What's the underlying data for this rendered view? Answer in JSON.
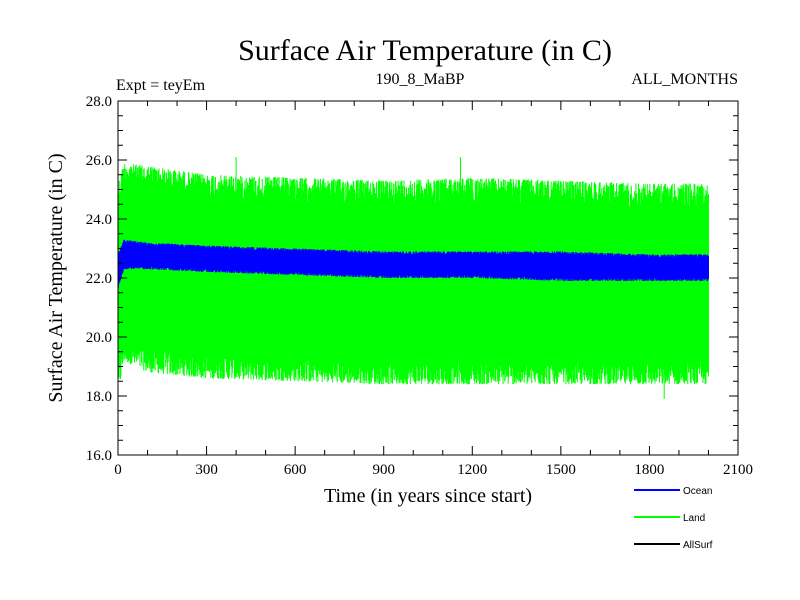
{
  "chart_data": {
    "type": "line",
    "title": "Surface Air Temperature (in C)",
    "subtitle_left": "Expt = teyEm",
    "subtitle_center": "190_8_MaBP",
    "subtitle_right": "ALL_MONTHS",
    "xlabel": "Time (in years since start)",
    "ylabel": "Surface Air Temperature (in C)",
    "xlim": [
      0,
      2100
    ],
    "ylim": [
      16.0,
      28.0
    ],
    "x_ticks": [
      0,
      300,
      600,
      900,
      1200,
      1500,
      1800,
      2100
    ],
    "x_tick_labels": [
      "0",
      "300",
      "600",
      "900",
      "1200",
      "1500",
      "1800",
      "2100"
    ],
    "y_ticks": [
      16.0,
      18.0,
      20.0,
      22.0,
      24.0,
      26.0,
      28.0
    ],
    "y_tick_labels": [
      "16.0",
      "18.0",
      "20.0",
      "22.0",
      "24.0",
      "26.0",
      "28.0"
    ],
    "x_minor_step": 100,
    "y_minor_step": 0.5,
    "series": [
      {
        "name": "Land",
        "color": "#00ff00",
        "x_range": [
          0,
          2000
        ],
        "envelope": {
          "x": [
            0,
            20,
            100,
            300,
            600,
            900,
            1200,
            1500,
            1800,
            2000
          ],
          "upper": [
            25.2,
            25.9,
            25.8,
            25.5,
            25.4,
            25.3,
            25.4,
            25.3,
            25.2,
            25.2
          ],
          "lower": [
            18.0,
            19.2,
            18.8,
            18.6,
            18.5,
            18.4,
            18.4,
            18.4,
            18.4,
            18.4
          ]
        },
        "notable_peaks": [
          {
            "x": 400,
            "y": 26.1
          },
          {
            "x": 1160,
            "y": 26.1
          }
        ],
        "notable_troughs": [
          {
            "x": 1850,
            "y": 17.9
          }
        ]
      },
      {
        "name": "Ocean",
        "color": "#0000ff",
        "x_range": [
          0,
          2000
        ],
        "envelope": {
          "x": [
            0,
            20,
            100,
            300,
            600,
            900,
            1200,
            1500,
            1800,
            2000
          ],
          "upper": [
            22.8,
            23.3,
            23.2,
            23.1,
            23.0,
            22.9,
            22.9,
            22.9,
            22.8,
            22.8
          ],
          "lower": [
            21.6,
            22.3,
            22.3,
            22.2,
            22.1,
            22.0,
            22.0,
            21.9,
            21.9,
            21.9
          ]
        }
      },
      {
        "name": "AllSurf",
        "color": "#000000",
        "x_range": [
          0,
          2000
        ],
        "values": []
      }
    ],
    "legend": {
      "placement": "bottom-right",
      "entries": [
        {
          "label": "Ocean",
          "color": "#0000ff"
        },
        {
          "label": "Land",
          "color": "#00ff00"
        },
        {
          "label": "AllSurf",
          "color": "#000000"
        }
      ]
    }
  }
}
